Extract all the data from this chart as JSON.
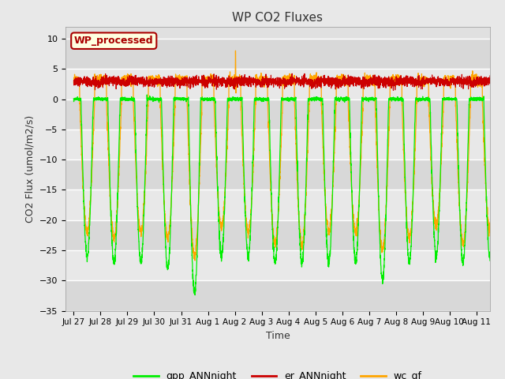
{
  "title": "WP CO2 Fluxes",
  "xlabel": "Time",
  "ylabel": "CO2 Flux (umol/m2/s)",
  "ylim": [
    -35,
    12
  ],
  "yticks": [
    -35,
    -30,
    -25,
    -20,
    -15,
    -10,
    -5,
    0,
    5,
    10
  ],
  "xlim": [
    26.7,
    42.5
  ],
  "gpp_color": "#00EE00",
  "er_color": "#CC0000",
  "wc_color": "#FFA500",
  "fig_bg": "#E8E8E8",
  "plot_bg": "#E0E0E0",
  "annotation_text": "WP_processed",
  "annotation_bg": "#FFFFE0",
  "annotation_border": "#AA0000",
  "annotation_text_color": "#AA0000",
  "legend_labels": [
    "gpp_ANNnight",
    "er_ANNnight",
    "wc_gf"
  ],
  "legend_colors": [
    "#00EE00",
    "#CC0000",
    "#FFA500"
  ],
  "tick_labels": [
    "Jul 27",
    "Jul 28",
    "Jul 29",
    "Jul 30",
    "Jul 31",
    "Aug 1",
    "Aug 2",
    "Aug 3",
    "Aug 4",
    "Aug 5",
    "Aug 6",
    "Aug 7",
    "Aug 8",
    "Aug 9",
    "Aug 10",
    "Aug 11"
  ],
  "tick_positions": [
    27,
    28,
    29,
    30,
    31,
    32,
    33,
    34,
    35,
    36,
    37,
    38,
    39,
    40,
    41,
    42
  ],
  "n_points": 3840
}
